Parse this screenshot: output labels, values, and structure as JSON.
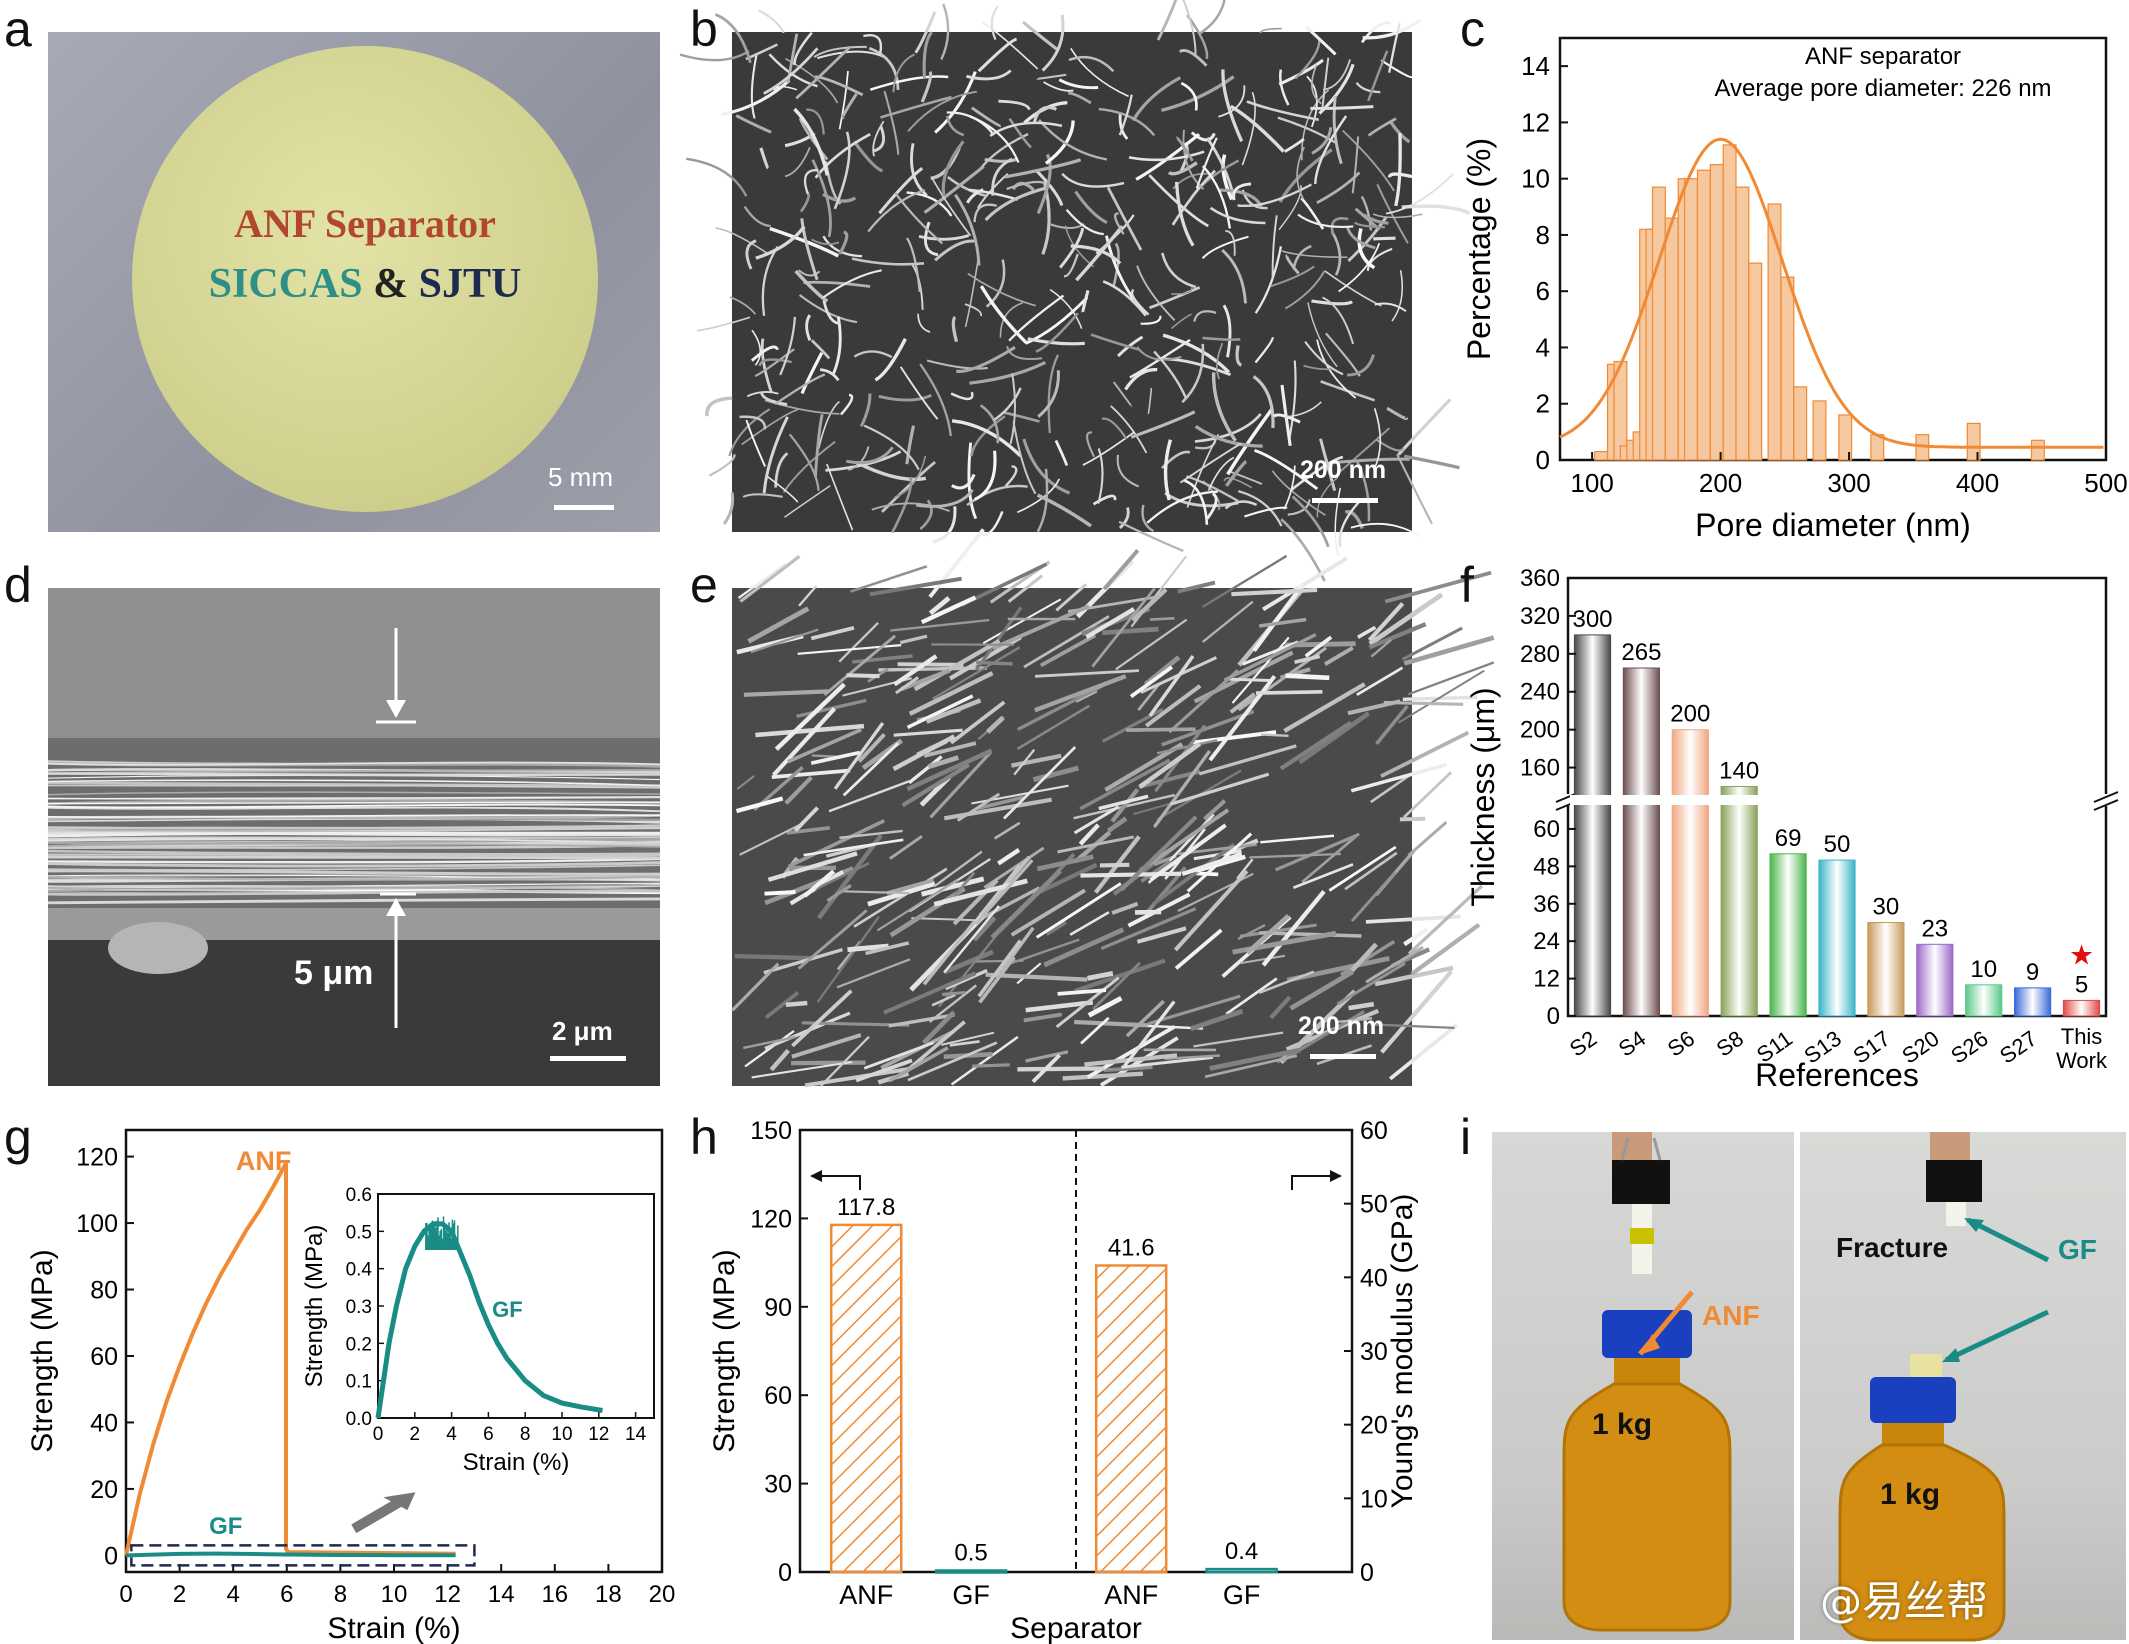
{
  "panels": {
    "a": {
      "letter": "a",
      "line1": "ANF Separator",
      "line2a": "SICCAS",
      "line2b": "&",
      "line2c": "SJTU",
      "scale": "5 mm"
    },
    "b": {
      "letter": "b",
      "scale": "200 nm"
    },
    "c": {
      "letter": "c"
    },
    "d": {
      "letter": "d",
      "scale": "2 μm",
      "thickness": "5 μm"
    },
    "e": {
      "letter": "e",
      "scale": "200 nm"
    },
    "f": {
      "letter": "f"
    },
    "g": {
      "letter": "g"
    },
    "h": {
      "letter": "h"
    },
    "i": {
      "letter": "i",
      "left_weight": "1 kg",
      "left_label": "ANF",
      "right_weight": "1 kg",
      "right_fracture": "Fracture",
      "right_label": "GF"
    }
  },
  "watermark": "@易丝帮",
  "colors": {
    "orange": "#F08A34",
    "teal": "#1A8C86",
    "navy": "#1E2B50",
    "red": "#B0472E"
  },
  "chart_data": [
    {
      "id": "c",
      "type": "bar",
      "xlabel": "Pore diameter (nm)",
      "ylabel": "Percentage (%)",
      "xlim": [
        75,
        500
      ],
      "ylim": [
        0,
        15
      ],
      "xticks": [
        100,
        200,
        300,
        400,
        500
      ],
      "yticks": [
        0,
        2,
        4,
        6,
        8,
        10,
        12,
        14
      ],
      "annotation_line1": "ANF separator",
      "annotation_line2": "Average pore diameter: 226 nm",
      "bin_width": 10,
      "x": [
        107,
        117,
        122,
        127,
        132,
        137,
        142,
        147,
        152,
        162,
        172,
        177,
        187,
        197,
        207,
        217,
        227,
        242,
        252,
        262,
        277,
        297,
        322,
        357,
        397,
        447
      ],
      "values": [
        0.3,
        3.4,
        3.5,
        0.5,
        0.7,
        1.0,
        8.2,
        8.2,
        9.7,
        8.6,
        10.0,
        10.0,
        10.3,
        10.5,
        11.2,
        9.7,
        7.0,
        9.1,
        6.5,
        2.6,
        2.1,
        1.6,
        0.9,
        0.9,
        1.3,
        0.7
      ],
      "fit": {
        "type": "gaussian",
        "peak": 11.4,
        "center": 200,
        "sigma": 48,
        "baseline": 0.45
      }
    },
    {
      "id": "f",
      "type": "bar",
      "xlabel": "References",
      "ylabel": "Thickness (μm)",
      "categories": [
        "S2",
        "S4",
        "S6",
        "S8",
        "S11",
        "S13",
        "S17",
        "S20",
        "S26",
        "S27",
        "This Work"
      ],
      "values": [
        300,
        265,
        200,
        140,
        69,
        50,
        30,
        23,
        10,
        9,
        5
      ],
      "labels": [
        "300",
        "265",
        "200",
        "140",
        "69",
        "50",
        "30",
        "23",
        "10",
        "9",
        "5"
      ],
      "colors": [
        "#4a4a4a",
        "#6e5050",
        "#f0a882",
        "#8aa25a",
        "#4cb44c",
        "#3cb4c8",
        "#c89a5a",
        "#9a6ac8",
        "#5ac88a",
        "#3a6ad8",
        "#e04a4a"
      ],
      "lower_yticks": [
        0,
        12,
        24,
        36,
        48,
        60
      ],
      "upper_yticks": [
        160,
        200,
        240,
        280,
        320,
        360
      ],
      "ylim_lower": [
        0,
        68
      ],
      "ylim_upper": [
        130,
        360
      ],
      "star": "★"
    },
    {
      "id": "g",
      "type": "line",
      "xlabel": "Strain (%)",
      "ylabel": "Strength (MPa)",
      "xlim": [
        0,
        20
      ],
      "ylim": [
        -5,
        128
      ],
      "xticks": [
        0,
        2,
        4,
        6,
        8,
        10,
        12,
        14,
        16,
        18,
        20
      ],
      "yticks": [
        0,
        20,
        40,
        60,
        80,
        100,
        120
      ],
      "series": [
        {
          "name": "ANF",
          "x": [
            0,
            0.5,
            1,
            1.5,
            2,
            2.5,
            3,
            3.5,
            4,
            4.5,
            5,
            5.5,
            5.97,
            5.97,
            6.05,
            12.3
          ],
          "y": [
            0,
            18,
            33,
            46,
            57,
            67,
            76,
            84,
            91,
            98,
            104,
            111,
            118,
            2,
            1,
            0.5
          ]
        },
        {
          "name": "GF",
          "x": [
            0,
            1,
            2,
            3,
            3.5,
            4,
            5,
            6,
            8,
            10,
            12.3
          ],
          "y": [
            0,
            0.25,
            0.45,
            0.53,
            0.53,
            0.5,
            0.4,
            0.28,
            0.12,
            0.05,
            0.02
          ]
        }
      ],
      "inset": {
        "xlabel": "Strain (%)",
        "ylabel": "Strength (MPa)",
        "xlim": [
          0,
          15
        ],
        "ylim": [
          0,
          0.6
        ],
        "xticks": [
          0,
          2,
          4,
          6,
          8,
          10,
          12,
          14
        ],
        "yticks": [
          0.0,
          0.1,
          0.2,
          0.3,
          0.4,
          0.5,
          0.6
        ],
        "ytick_labels": [
          "0.0",
          "0.1",
          "0.2",
          "0.3",
          "0.4",
          "0.5",
          "0.6"
        ],
        "series_name": "GF",
        "x": [
          0,
          0.3,
          0.6,
          1,
          1.5,
          2,
          2.5,
          3,
          3.5,
          4,
          4.5,
          5,
          5.5,
          6,
          6.5,
          7,
          8,
          9,
          10,
          11,
          12.2
        ],
        "y": [
          0,
          0.1,
          0.2,
          0.3,
          0.4,
          0.46,
          0.5,
          0.52,
          0.52,
          0.5,
          0.44,
          0.38,
          0.31,
          0.25,
          0.2,
          0.16,
          0.1,
          0.06,
          0.04,
          0.03,
          0.02
        ]
      }
    },
    {
      "id": "h",
      "type": "bar",
      "xlabel": "Separator",
      "ylabel": "Strength (MPa)",
      "y2label": "Young's modulus (GPa)",
      "categories": [
        "ANF",
        "GF",
        "ANF",
        "GF"
      ],
      "values": [
        117.8,
        0.5,
        41.6,
        0.4
      ],
      "labels": [
        "117.8",
        "0.5",
        "41.6",
        "0.4"
      ],
      "axis": [
        "left",
        "left",
        "right",
        "right"
      ],
      "ylim": [
        0,
        150
      ],
      "y2lim": [
        0,
        60
      ],
      "yticks": [
        0,
        30,
        60,
        90,
        120,
        150
      ],
      "y2ticks": [
        0,
        10,
        20,
        30,
        40,
        50,
        60
      ]
    }
  ]
}
